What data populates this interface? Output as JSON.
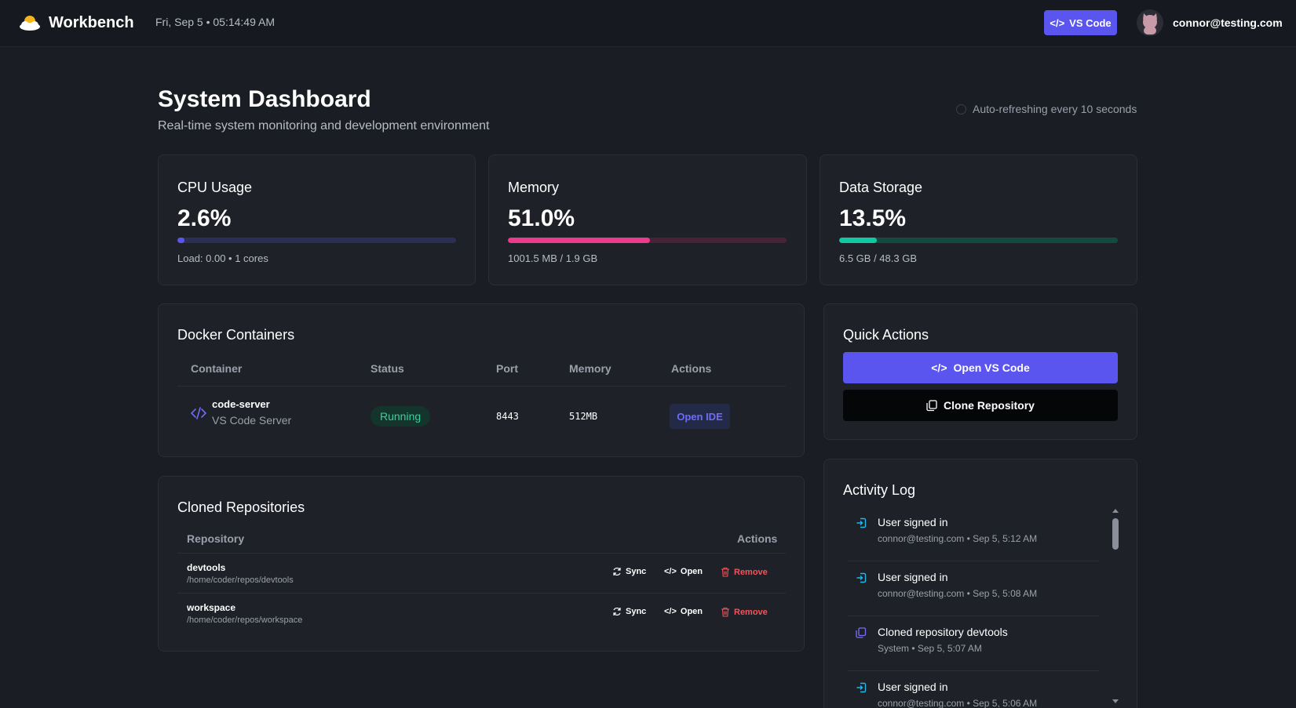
{
  "header": {
    "brand": "Workbench",
    "datetime": "Fri, Sep 5 • 05:14:49 AM",
    "vs_code_label": "VS Code",
    "user_email": "connor@testing.com"
  },
  "page": {
    "title": "System Dashboard",
    "subtitle": "Real-time system monitoring and development environment",
    "refresh_text": "Auto-refreshing every 10 seconds"
  },
  "stats": [
    {
      "label": "CPU Usage",
      "value": "2.6%",
      "percent": 2.6,
      "detail": "Load: 0.00 • 1 cores",
      "color": "#5b55f0",
      "track": "#2c2f55"
    },
    {
      "label": "Memory",
      "value": "51.0%",
      "percent": 51.0,
      "detail": "1001.5 MB / 1.9 GB",
      "color": "#ec3b8a",
      "track": "#4a2237"
    },
    {
      "label": "Data Storage",
      "value": "13.5%",
      "percent": 13.5,
      "detail": "6.5 GB / 48.3 GB",
      "color": "#10c9a3",
      "track": "#154a40"
    }
  ],
  "docker": {
    "title": "Docker Containers",
    "headers": [
      "Container",
      "Status",
      "Port",
      "Memory",
      "Actions"
    ],
    "rows": [
      {
        "name": "code-server",
        "description": "VS Code Server",
        "status": "Running",
        "port": "8443",
        "memory": "512MB",
        "action": "Open IDE"
      }
    ]
  },
  "repos": {
    "title": "Cloned Repositories",
    "headers": [
      "Repository",
      "Actions"
    ],
    "sync_label": "Sync",
    "open_label": "Open",
    "remove_label": "Remove",
    "rows": [
      {
        "name": "devtools",
        "path": "/home/coder/repos/devtools"
      },
      {
        "name": "workspace",
        "path": "/home/coder/repos/workspace"
      }
    ]
  },
  "quick_actions": {
    "title": "Quick Actions",
    "open_vscode": "Open VS Code",
    "clone_repo": "Clone Repository"
  },
  "activity": {
    "title": "Activity Log",
    "items": [
      {
        "title": "User signed in",
        "meta": "connor@testing.com • Sep 5, 5:12 AM",
        "icon": "sign-in-icon"
      },
      {
        "title": "User signed in",
        "meta": "connor@testing.com • Sep 5, 5:08 AM",
        "icon": "sign-in-icon"
      },
      {
        "title": "Cloned repository devtools",
        "meta": "System • Sep 5, 5:07 AM",
        "icon": "copy-icon"
      },
      {
        "title": "User signed in",
        "meta": "connor@testing.com • Sep 5, 5:06 AM",
        "icon": "sign-in-icon"
      }
    ]
  },
  "colors": {
    "accent": "#5b55f0",
    "success": "#34d399",
    "danger": "#f2545b",
    "background": "#1a1d24",
    "card": "#1e2128"
  }
}
